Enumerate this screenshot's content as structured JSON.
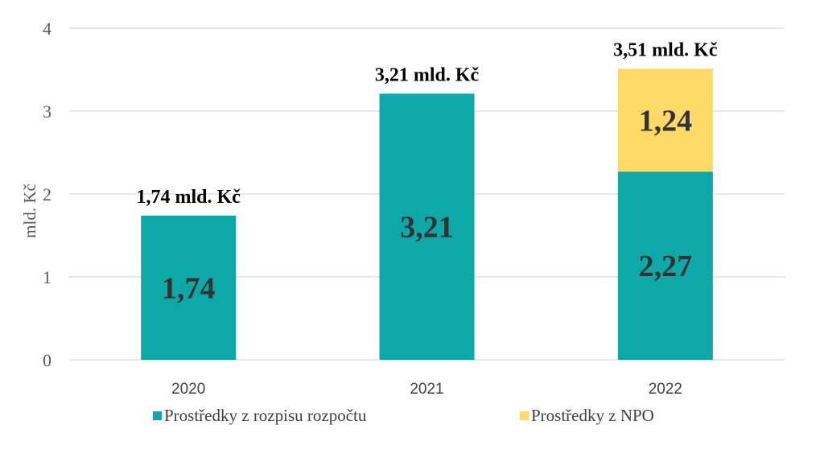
{
  "chart_data": {
    "type": "bar",
    "stacked": true,
    "categories": [
      "2020",
      "2021",
      "2022"
    ],
    "series": [
      {
        "name": "Prostředky z rozpisu rozpočtu",
        "values": [
          1.74,
          3.21,
          2.27
        ],
        "labels": [
          "1,74",
          "3,21",
          "2,27"
        ],
        "color": "#0FA8A8"
      },
      {
        "name": "Prostředky z NPO",
        "values": [
          0,
          0,
          1.24
        ],
        "labels": [
          "",
          "",
          "1,24"
        ],
        "color": "#FFD966"
      }
    ],
    "totals": [
      "1,74 mld. Kč",
      "3,21 mld. Kč",
      "3,51 mld. Kč"
    ],
    "total_values": [
      1.74,
      3.21,
      3.51
    ],
    "ylabel": "mld. Kč",
    "xlabel": "",
    "ylim": [
      0,
      4
    ],
    "yticks": [
      "0",
      "1",
      "2",
      "3",
      "4"
    ],
    "grid": true,
    "legend": "bottom"
  }
}
